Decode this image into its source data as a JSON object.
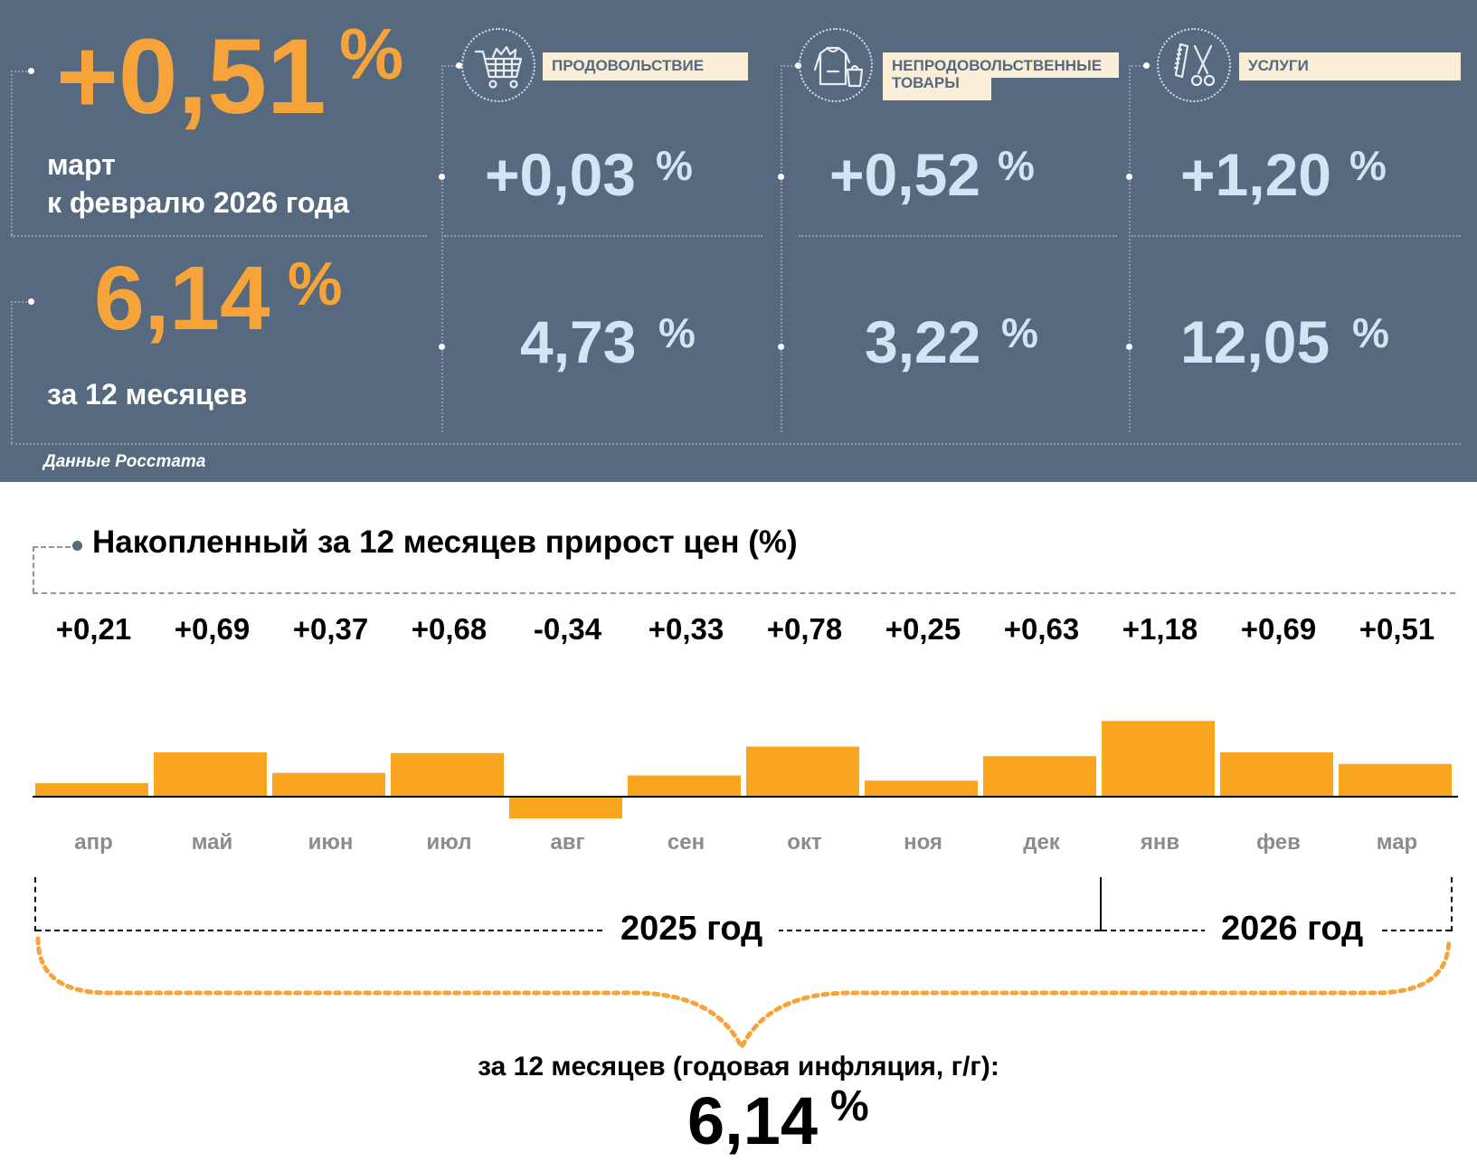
{
  "summary": {
    "monthly_value": "+0,51",
    "monthly_caption_line1": "март",
    "monthly_caption_line2": "к февралю 2026 года",
    "annual_value": "6,14",
    "annual_caption": "за 12 месяцев",
    "percent_sign": "%",
    "source": "Данные Росстата"
  },
  "categories": [
    {
      "label": "ПРОДОВОЛЬСТВИЕ",
      "icon": "shopping-cart-icon",
      "monthly": "+0,03",
      "annual": "4,73"
    },
    {
      "label_line1": "НЕПРОДОВОЛЬСТВЕННЫЕ",
      "label_line2": "ТОВАРЫ",
      "icon": "clothing-icon",
      "monthly": "+0,52",
      "annual": "3,22"
    },
    {
      "label": "УСЛУГИ",
      "icon": "scissors-comb-icon",
      "monthly": "+1,20",
      "annual": "12,05"
    }
  ],
  "colors": {
    "panel_bg": "#56697f",
    "accent_orange": "#f6a43a",
    "value_blue": "#cfe6f5",
    "label_bg": "#fbeed9",
    "bar": "#f9a51f"
  },
  "chart_data": {
    "type": "bar",
    "title": "Накопленный за 12 месяцев прирост цен (%)",
    "categories": [
      "апр",
      "май",
      "июн",
      "июл",
      "авг",
      "сен",
      "окт",
      "ноя",
      "дек",
      "янв",
      "фев",
      "мар"
    ],
    "values": [
      0.21,
      0.69,
      0.37,
      0.68,
      -0.34,
      0.33,
      0.78,
      0.25,
      0.63,
      1.18,
      0.69,
      0.51
    ],
    "value_labels": [
      "+0,21",
      "+0,69",
      "+0,37",
      "+0,68",
      "-0,34",
      "+0,33",
      "+0,78",
      "+0,25",
      "+0,63",
      "+1,18",
      "+0,69",
      "+0,51"
    ],
    "year_groups": [
      {
        "label": "2025 год",
        "months": 9
      },
      {
        "label": "2026 год",
        "months": 3
      }
    ],
    "total_caption": "за 12 месяцев (годовая инфляция, г/г):",
    "total_value": "6,14",
    "total_percent": "%"
  }
}
